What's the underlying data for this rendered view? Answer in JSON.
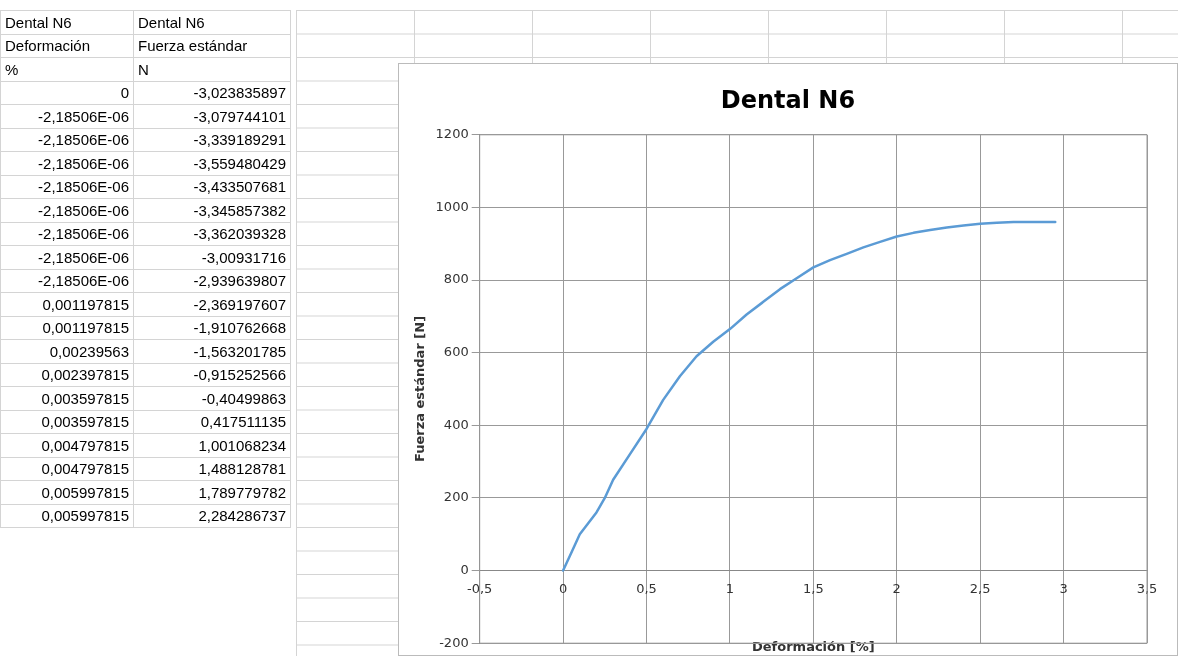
{
  "chart_data": {
    "type": "line",
    "title": "Dental N6",
    "xlabel": "Deformación [%]",
    "ylabel": "Fuerza estándar [N]",
    "x": [
      0,
      0.05,
      0.1,
      0.2,
      0.25,
      0.3,
      0.4,
      0.5,
      0.6,
      0.7,
      0.8,
      0.9,
      1.0,
      1.1,
      1.2,
      1.3,
      1.4,
      1.5,
      1.6,
      1.7,
      1.8,
      1.9,
      2.0,
      2.1,
      2.2,
      2.3,
      2.4,
      2.5,
      2.6,
      2.7,
      2.8,
      2.95
    ],
    "series": [
      {
        "color": "#5b9bd5",
        "values": [
          0,
          50,
          100,
          160,
          200,
          250,
          320,
          390,
          470,
          535,
          590,
          630,
          665,
          705,
          740,
          775,
          805,
          835,
          855,
          872,
          890,
          905,
          920,
          930,
          938,
          945,
          950,
          955,
          958,
          960,
          960,
          960
        ]
      }
    ],
    "xlim": [
      -0.5,
      3.5
    ],
    "xticks": [
      {
        "value": -0.5,
        "label": "-0,5"
      },
      0,
      {
        "value": 0.5,
        "label": "0,5"
      },
      1,
      {
        "value": 1.5,
        "label": "1,5"
      },
      2,
      {
        "value": 2.5,
        "label": "2,5"
      },
      3,
      {
        "value": 3.5,
        "label": "3,5"
      }
    ],
    "ylim": [
      -200,
      1200
    ],
    "yticks": [
      -200,
      0,
      200,
      400,
      600,
      800,
      1000,
      1200
    ],
    "grid": true,
    "marker": "none",
    "line_style": "solid",
    "annotations": [
      "Dental N6",
      "Dental N6",
      "Deformación",
      "Fuerza estándar",
      "%",
      "N",
      "0",
      "-3,023835897",
      "-2,18506E-06",
      "-3,079744101",
      "-2,18506E-06",
      "-3,339189291",
      "-2,18506E-06",
      "-3,559480429",
      "-2,18506E-06",
      "-3,433507681",
      "-2,18506E-06",
      "-3,345857382",
      "-2,18506E-06",
      "-3,362039328",
      "-2,18506E-06",
      "-3,00931716",
      "-2,18506E-06",
      "-2,939639807",
      "0,001197815",
      "-2,369197607",
      "0,001197815",
      "-1,910762668",
      "0,00239563",
      "-1,563201785",
      "0,002397815",
      "-0,915252566",
      "0,003597815",
      "-0,40499863",
      "0,003597815",
      "0,417511135",
      "0,004797815",
      "1,001068234",
      "0,004797815",
      "1,488128781",
      "0,005997815",
      "1,789779782",
      "0,005997815",
      "2,284286737"
    ]
  }
}
